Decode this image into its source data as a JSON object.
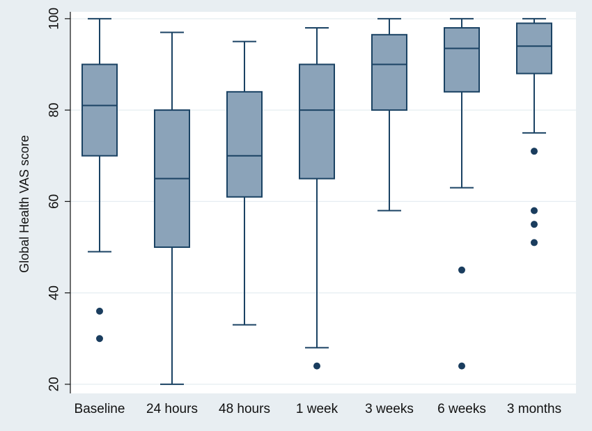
{
  "chart_data": {
    "type": "boxplot",
    "title": "",
    "xlabel": "",
    "ylabel": "Global Health VAS score",
    "ylim": [
      18,
      101.5
    ],
    "yticks": [
      20,
      40,
      60,
      80,
      100
    ],
    "grid": true,
    "categories": [
      "Baseline",
      "24 hours",
      "48 hours",
      "1 week",
      "3 weeks",
      "6 weeks",
      "3 months"
    ],
    "boxes": [
      {
        "category": "Baseline",
        "whisker_low": 49,
        "q1": 70,
        "median": 81,
        "q3": 90,
        "whisker_high": 100,
        "outliers": [
          36,
          30
        ]
      },
      {
        "category": "24 hours",
        "whisker_low": 20,
        "q1": 50,
        "median": 65,
        "q3": 80,
        "whisker_high": 97,
        "outliers": []
      },
      {
        "category": "48 hours",
        "whisker_low": 33,
        "q1": 61,
        "median": 70,
        "q3": 84,
        "whisker_high": 95,
        "outliers": []
      },
      {
        "category": "1 week",
        "whisker_low": 28,
        "q1": 65,
        "median": 80,
        "q3": 90,
        "whisker_high": 98,
        "outliers": [
          24
        ]
      },
      {
        "category": "3 weeks",
        "whisker_low": 58,
        "q1": 80,
        "median": 90,
        "q3": 96.5,
        "whisker_high": 100,
        "outliers": []
      },
      {
        "category": "6 weeks",
        "whisker_low": 63,
        "q1": 84,
        "median": 93.5,
        "q3": 98,
        "whisker_high": 100,
        "outliers": [
          45,
          24
        ]
      },
      {
        "category": "3 months",
        "whisker_low": 75,
        "q1": 88,
        "median": 94,
        "q3": 99,
        "whisker_high": 100,
        "outliers": [
          71,
          58,
          55,
          51
        ]
      }
    ],
    "colors": {
      "background": "#e8eef2",
      "plot_background": "#ffffff",
      "box_fill": "#8ba3b9",
      "line": "#1a4263",
      "outlier": "#1a3d5e",
      "grid": "#e6edf1"
    }
  }
}
